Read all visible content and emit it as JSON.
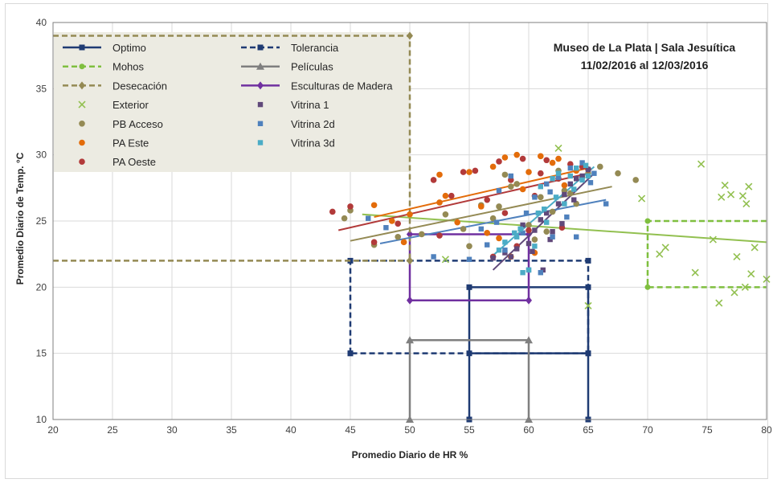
{
  "chart_data": {
    "type": "scatter",
    "title_lines": [
      "Museo de La Plata | Sala Jesuítica",
      "11/02/2016 al 12/03/2016"
    ],
    "xlabel": "Promedio Diario de HR %",
    "ylabel": "Promedio Diario de Temp. °C",
    "xlim": [
      20,
      80
    ],
    "ylim": [
      10,
      40
    ],
    "x_ticks": [
      20,
      25,
      30,
      35,
      40,
      45,
      50,
      55,
      60,
      65,
      70,
      75,
      80
    ],
    "y_ticks": [
      10,
      15,
      20,
      25,
      30,
      35,
      40
    ],
    "grid": true,
    "legend_placement": "top-left inside plot",
    "zones": [
      {
        "name": "Optimo",
        "color": "#1f3b73",
        "dash": "solid",
        "segments": [
          [
            [
              55,
              10
            ],
            [
              55,
              20
            ],
            [
              65,
              20
            ],
            [
              65,
              10
            ]
          ],
          [
            [
              55,
              15
            ],
            [
              65,
              15
            ]
          ]
        ]
      },
      {
        "name": "Tolerancia",
        "color": "#1f3b73",
        "dash": "dashed",
        "segments": [
          [
            [
              45,
              15
            ],
            [
              45,
              22
            ],
            [
              65,
              22
            ],
            [
              65,
              15
            ],
            [
              45,
              15
            ]
          ]
        ]
      },
      {
        "name": "Películas",
        "color": "#7f7f7f",
        "dash": "solid",
        "segments": [
          [
            [
              50,
              10
            ],
            [
              50,
              16
            ],
            [
              60,
              16
            ],
            [
              60,
              10
            ]
          ]
        ]
      },
      {
        "name": "Esculturas de Madera",
        "color": "#7030a0",
        "dash": "solid",
        "segments": [
          [
            [
              50,
              24
            ],
            [
              50,
              19
            ],
            [
              60,
              19
            ],
            [
              60,
              24
            ],
            [
              50,
              24
            ]
          ]
        ]
      },
      {
        "name": "Mohos",
        "color": "#7fbf3f",
        "dash": "dashed",
        "segments": [
          [
            [
              80,
              25
            ],
            [
              70,
              25
            ],
            [
              70,
              20
            ],
            [
              80,
              20
            ]
          ]
        ]
      },
      {
        "name": "Desecación",
        "color": "#948a54",
        "dash": "dashed",
        "segments": [
          [
            [
              20,
              22
            ],
            [
              50,
              22
            ]
          ],
          [
            [
              20,
              39
            ],
            [
              50,
              39
            ],
            [
              50,
              22
            ]
          ]
        ]
      }
    ],
    "series": [
      {
        "name": "Exterior",
        "marker": "x",
        "color": "#92c050",
        "x": [
          74.5,
          76.5,
          77,
          78,
          78.5,
          77.5,
          76.2,
          75.5,
          74,
          76,
          77.3,
          78.2,
          79,
          80,
          71,
          71.5,
          69.5,
          65,
          62.5,
          53,
          78.3,
          78.7
        ],
        "y": [
          29.3,
          27.7,
          27,
          26.9,
          27.6,
          22.3,
          26.8,
          23.6,
          21.1,
          18.8,
          19.6,
          20,
          23,
          20.6,
          22.5,
          23,
          26.7,
          18.6,
          30.5,
          22.1,
          26.3,
          21
        ],
        "trend": [
          [
            46,
            25.5
          ],
          [
            80,
            23.4
          ]
        ]
      },
      {
        "name": "PB Acceso",
        "marker": "circle",
        "color": "#948a54",
        "x": [
          44.5,
          45,
          47,
          49,
          51,
          53,
          54.5,
          56,
          57,
          58,
          59,
          60,
          61,
          62,
          63,
          64,
          65,
          66,
          67.5,
          69,
          63.5,
          62.5,
          58.5,
          55,
          60.5,
          64.5,
          61.5,
          57.5
        ],
        "y": [
          25.2,
          25.8,
          23.2,
          23.8,
          24,
          25.5,
          24.4,
          26.2,
          25.2,
          28.5,
          27.8,
          24.7,
          26.8,
          25.7,
          27.3,
          26.3,
          28.6,
          29.1,
          28.6,
          28.1,
          27.1,
          28.8,
          27.6,
          23.1,
          23.6,
          28.3,
          24.2,
          26.1
        ],
        "trend": [
          [
            45,
            23.5
          ],
          [
            67,
            27.6
          ]
        ]
      },
      {
        "name": "PA Este",
        "marker": "circle",
        "color": "#e36c0a",
        "x": [
          47,
          48.5,
          50,
          52.5,
          53,
          55,
          56,
          57,
          58,
          59,
          59.5,
          60,
          61,
          62,
          63,
          64,
          58.5,
          60.5,
          56.5,
          54,
          57.5,
          62.5,
          52.5,
          49.5
        ],
        "y": [
          26.2,
          25,
          25.5,
          28.5,
          26.9,
          28.7,
          26.1,
          29.1,
          29.8,
          30,
          27.4,
          28.7,
          29.9,
          29.4,
          27.7,
          28.8,
          22.3,
          22.6,
          24.1,
          24.9,
          23.7,
          29.7,
          26.4,
          23.4
        ],
        "trend": [
          [
            47,
            25.3
          ],
          [
            65,
            29.0
          ]
        ]
      },
      {
        "name": "PA Oeste",
        "marker": "circle",
        "color": "#b23a3a",
        "x": [
          43.5,
          45,
          47,
          49,
          52,
          53.5,
          54.5,
          55.5,
          56.5,
          57.5,
          58.5,
          59.5,
          60.5,
          61.5,
          62.5,
          63.5,
          64.5,
          65,
          59,
          57,
          60,
          61,
          58,
          52.5,
          62.8
        ],
        "y": [
          25.7,
          26.1,
          23.4,
          24.8,
          28.1,
          26.9,
          28.7,
          28.8,
          26.6,
          29.5,
          28.1,
          29.7,
          26.9,
          29.6,
          28.2,
          29.3,
          29.1,
          28.9,
          23.1,
          22.3,
          24.3,
          28.6,
          25.6,
          23.9,
          24.5
        ],
        "trend": [
          [
            44,
            24.3
          ],
          [
            65,
            28.6
          ]
        ]
      },
      {
        "name": "Vitrina 1",
        "marker": "square",
        "color": "#60497a",
        "x": [
          57,
          58,
          59,
          60,
          60.5,
          61,
          61.5,
          62,
          62.5,
          63,
          63.5,
          64,
          64.5,
          65,
          60.3,
          61.2,
          62.8,
          63.8,
          58.5,
          59.5,
          61.8
        ],
        "y": [
          22.2,
          22.6,
          22.9,
          23.3,
          24.3,
          25.1,
          25.6,
          24.2,
          26.3,
          27,
          27.8,
          28.2,
          28.4,
          28.9,
          22.7,
          21.3,
          24.8,
          26.6,
          22.3,
          24.7,
          23.6
        ],
        "trend": [
          [
            57,
            21.3
          ],
          [
            65.5,
            28.6
          ]
        ]
      },
      {
        "name": "Vitrina 2d",
        "marker": "square",
        "color": "#4f81bd",
        "x": [
          46.5,
          48,
          52,
          55,
          56.5,
          57.5,
          58.5,
          59.5,
          60.5,
          61.5,
          62.5,
          63.5,
          64.5,
          65.5,
          66.5,
          64,
          62,
          60,
          58,
          56,
          59.8,
          61.8,
          63.2,
          65.2,
          61,
          57.3
        ],
        "y": [
          25.2,
          24.5,
          22.3,
          22.1,
          23.2,
          27.3,
          28.4,
          24.1,
          26.8,
          27.8,
          28.3,
          29,
          29.4,
          28.6,
          26.3,
          23.8,
          23.8,
          21.3,
          22.8,
          24.4,
          25.6,
          27.2,
          25.3,
          27.9,
          21.1,
          24.9
        ],
        "trend": [
          [
            47.5,
            23.3
          ],
          [
            66.5,
            26.6
          ]
        ]
      },
      {
        "name": "Vitrina 3d",
        "marker": "square",
        "color": "#4bacc6",
        "x": [
          57.5,
          58,
          59,
          59.5,
          60,
          60.5,
          61,
          61.5,
          62,
          62.5,
          63,
          63.5,
          64,
          64.5,
          65,
          59.3,
          60.8,
          62.3,
          63.8,
          64.8,
          58.8,
          61.3
        ],
        "y": [
          22.8,
          23.4,
          23.8,
          21.1,
          21.3,
          23.1,
          27.6,
          24.9,
          28.2,
          28.6,
          26.3,
          28.4,
          29,
          28.1,
          28.4,
          24.4,
          25.6,
          26.8,
          27.4,
          29.2,
          24.1,
          25.9
        ],
        "trend": [
          [
            57,
            22.4
          ],
          [
            65.5,
            29.1
          ]
        ]
      }
    ]
  }
}
